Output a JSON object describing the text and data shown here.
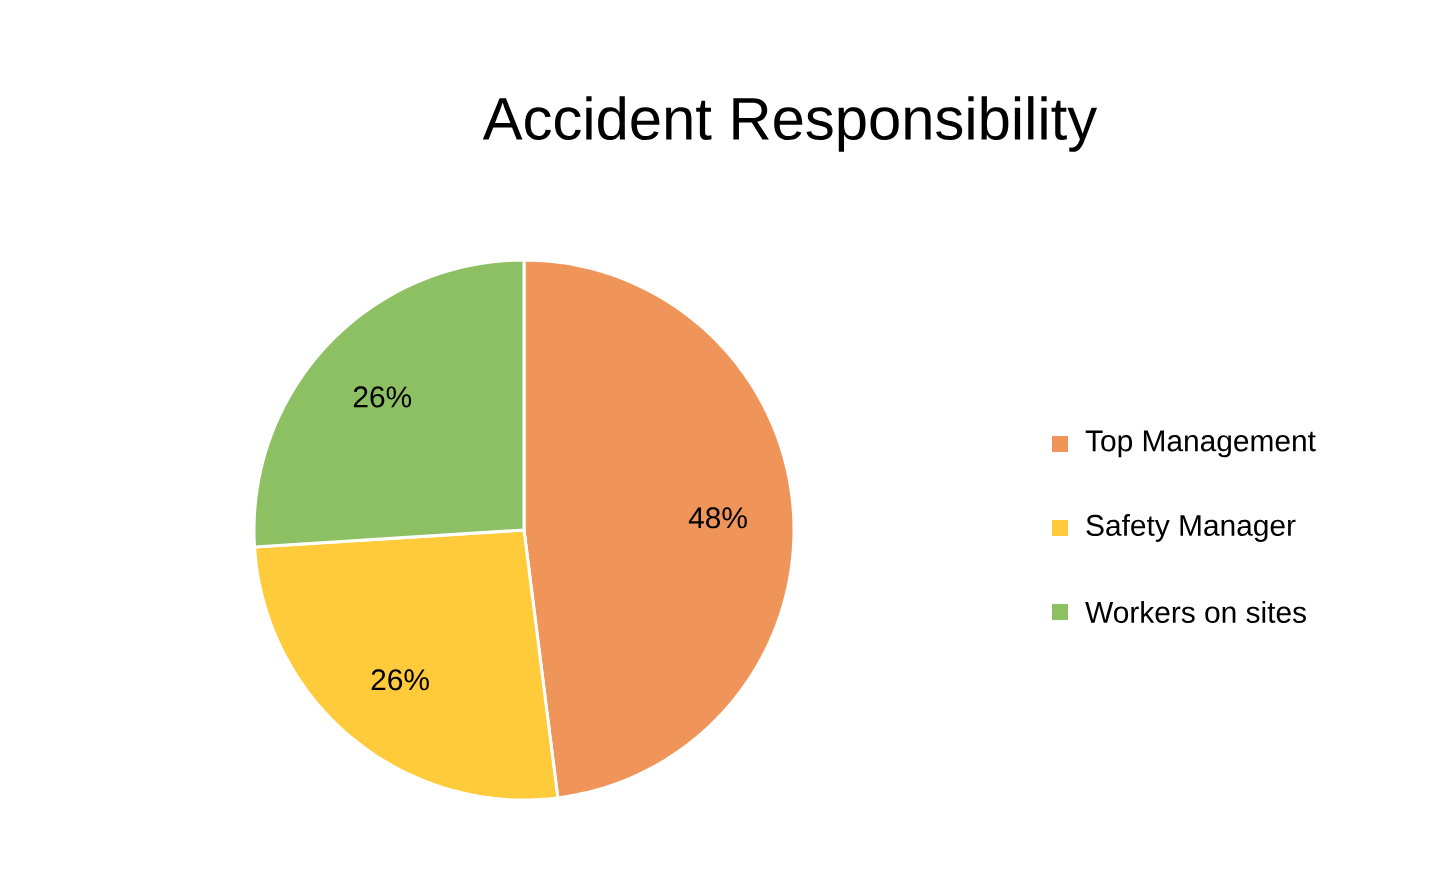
{
  "chart_data": {
    "type": "pie",
    "title": "Accident Responsibility",
    "categories": [
      "Top Management",
      "Safety Manager",
      "Workers on sites"
    ],
    "values": [
      48,
      26,
      26
    ],
    "colors": [
      "#f0955a",
      "#ffcb3a",
      "#8dc062"
    ],
    "value_labels": [
      "48%",
      "26%",
      "26%"
    ],
    "legend": "right"
  }
}
